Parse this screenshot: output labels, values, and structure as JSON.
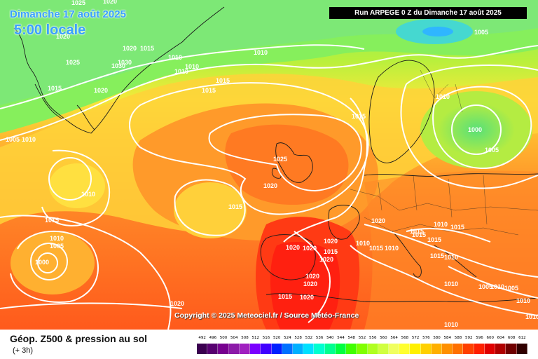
{
  "header": {
    "date_line": "Dimanche 17 août 2025",
    "time_line": "5:00 locale",
    "run_label": "Run ARPEGE 0 Z du Dimanche 17 août 2025"
  },
  "copyright": "Copyright © 2025 Meteociel.fr / Source Météo-France",
  "footer": {
    "title": "Géop. Z500 & pression au sol",
    "subtitle": "(+ 3h)"
  },
  "legend": {
    "labels": [
      "492",
      "496",
      "500",
      "504",
      "508",
      "512",
      "516",
      "520",
      "524",
      "528",
      "532",
      "536",
      "540",
      "544",
      "548",
      "552",
      "556",
      "560",
      "564",
      "568",
      "572",
      "576",
      "580",
      "584",
      "588",
      "592",
      "596",
      "600",
      "604",
      "608",
      "612"
    ],
    "colors": [
      "#3b0050",
      "#570070",
      "#77008f",
      "#8c1aa8",
      "#a020c0",
      "#7a00ff",
      "#4000ff",
      "#0020ff",
      "#0070ff",
      "#00b0ff",
      "#00e0ff",
      "#00ffd0",
      "#00ff90",
      "#00ff40",
      "#40ff00",
      "#80ff00",
      "#b0ff20",
      "#d0ff40",
      "#f0ff60",
      "#ffff30",
      "#fff000",
      "#ffd000",
      "#ffb000",
      "#ff9000",
      "#ff7000",
      "#ff4000",
      "#ff2000",
      "#e00000",
      "#b00000",
      "#700000",
      "#300000"
    ]
  },
  "isobars": [
    {
      "id": "i1",
      "label": "1025"
    },
    {
      "id": "i2",
      "label": "1020"
    },
    {
      "id": "i3",
      "label": "1020"
    },
    {
      "id": "i4",
      "label": "1015"
    },
    {
      "id": "i5",
      "label": "1025"
    },
    {
      "id": "i6",
      "label": "1030"
    },
    {
      "id": "i7",
      "label": "1030"
    },
    {
      "id": "i8",
      "label": "1020"
    },
    {
      "id": "i9",
      "label": "1015"
    },
    {
      "id": "i10",
      "label": "1010"
    },
    {
      "id": "i11",
      "label": "1010"
    },
    {
      "id": "i12",
      "label": "1010"
    },
    {
      "id": "i13",
      "label": "1010"
    },
    {
      "id": "i14",
      "label": "1005"
    },
    {
      "id": "i15",
      "label": "1015"
    },
    {
      "id": "i16",
      "label": "1020"
    },
    {
      "id": "i17",
      "label": "1015"
    },
    {
      "id": "i18",
      "label": "1015"
    },
    {
      "id": "i19",
      "label": "1005"
    },
    {
      "id": "i20",
      "label": "1010"
    },
    {
      "id": "i21",
      "label": "1010"
    },
    {
      "id": "i22",
      "label": "1025"
    },
    {
      "id": "i23",
      "label": "1025"
    },
    {
      "id": "i24",
      "label": "1010"
    },
    {
      "id": "i25",
      "label": "1000"
    },
    {
      "id": "i26",
      "label": "1005"
    },
    {
      "id": "i27",
      "label": "1020"
    },
    {
      "id": "i28",
      "label": "1015"
    },
    {
      "id": "i29",
      "label": "1015"
    },
    {
      "id": "i30",
      "label": "1010"
    },
    {
      "id": "i31",
      "label": "1005"
    },
    {
      "id": "i32",
      "label": "1000"
    },
    {
      "id": "i33",
      "label": "1020"
    },
    {
      "id": "i34",
      "label": "1020"
    },
    {
      "id": "i35",
      "label": "1020"
    },
    {
      "id": "i36",
      "label": "1015"
    },
    {
      "id": "i37",
      "label": "1020"
    },
    {
      "id": "i38",
      "label": "1010"
    },
    {
      "id": "i39",
      "label": "1015"
    },
    {
      "id": "i40",
      "label": "1010"
    },
    {
      "id": "i41",
      "label": "1020"
    },
    {
      "id": "i42",
      "label": "1015"
    },
    {
      "id": "i43",
      "label": "1015"
    },
    {
      "id": "i44",
      "label": "1015"
    },
    {
      "id": "i45",
      "label": "1010"
    },
    {
      "id": "i46",
      "label": "1015"
    },
    {
      "id": "i47",
      "label": "1015"
    },
    {
      "id": "i48",
      "label": "1010"
    },
    {
      "id": "i49",
      "label": "1010"
    },
    {
      "id": "i50",
      "label": "1005"
    },
    {
      "id": "i51",
      "label": "1010"
    },
    {
      "id": "i52",
      "label": "1005"
    },
    {
      "id": "i53",
      "label": "1010"
    },
    {
      "id": "i54",
      "label": "1020"
    },
    {
      "id": "i55",
      "label": "1020"
    },
    {
      "id": "i56",
      "label": "1015"
    },
    {
      "id": "i57",
      "label": "1020"
    },
    {
      "id": "i58",
      "label": "1020"
    },
    {
      "id": "i59",
      "label": "1010"
    },
    {
      "id": "i60",
      "label": "1010"
    }
  ]
}
